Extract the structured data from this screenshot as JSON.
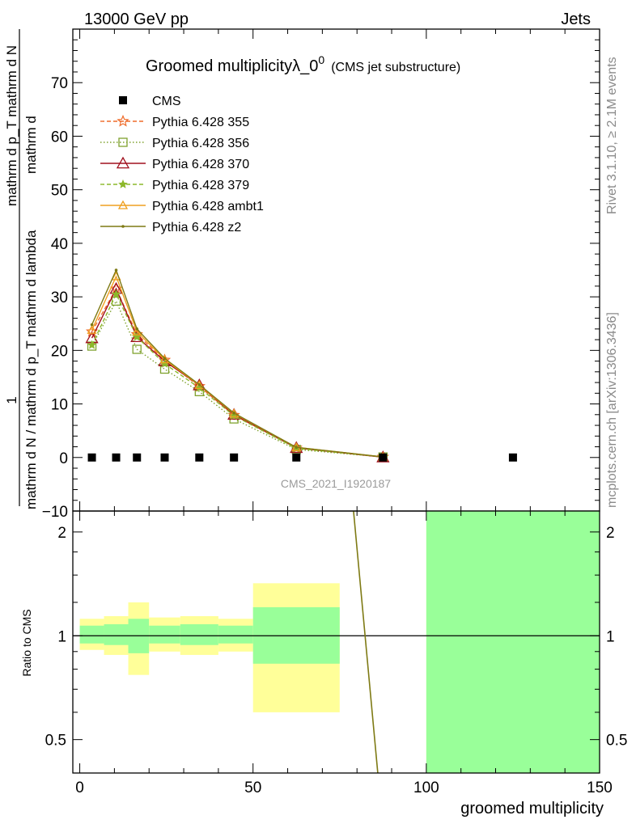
{
  "header": {
    "energy_label": "13000 GeV pp",
    "category_label": "Jets",
    "rivet_label": "Rivet 3.1.10, ≥ 2.1M events",
    "site_label": "mcplots.cern.ch [arXiv:1306.3436]",
    "analysis_id": "CMS_2021_I1920187"
  },
  "colors": {
    "cms": "#000000",
    "p355": "#ef6c2a",
    "p356": "#7fa22e",
    "p370": "#a0101e",
    "p379": "#8cb82a",
    "ambt1": "#efa020",
    "z2": "#7e7a14",
    "band_inner": "#99ff99",
    "band_outer": "#ffff99"
  },
  "chart_data": [
    {
      "type": "line",
      "title": "Groomed multiplicityλ_0",
      "title_superscript": "0",
      "subtitle": "(CMS jet substructure)",
      "ylabel_line1": "mathrm d N / mathrm d p_T mathrm d lambda",
      "ylabel_line2": "mathrm d p_T mathrm d N",
      "ylabel_small": "T",
      "ylabel_numerator": "1",
      "ylabel_fraction_top": "mathrm d",
      "ylabel_fraction_bottom": "mathrm d N / mathrm d p",
      "xlim": [
        -2,
        150
      ],
      "ylim": [
        -10,
        80
      ],
      "yticks": [
        -10,
        0,
        10,
        20,
        30,
        40,
        50,
        60,
        70
      ],
      "legend_position": "top-left",
      "cms": {
        "name": "CMS",
        "x": [
          3.5,
          10.5,
          16.5,
          24.5,
          34.5,
          44.5,
          62.5,
          87.5,
          125
        ],
        "y": [
          0,
          0,
          0,
          0,
          0,
          0,
          0,
          0,
          0
        ]
      },
      "x": [
        3.5,
        10.5,
        16.5,
        24.5,
        34.5,
        44.5,
        62.5,
        87.5
      ],
      "series": [
        {
          "name": "Pythia 6.428 355",
          "key": "p355",
          "marker": "star",
          "dash": "5,3",
          "values": [
            23.5,
            31.5,
            23.0,
            18.2,
            13.3,
            7.9,
            1.8,
            0.1
          ]
        },
        {
          "name": "Pythia 6.428 356",
          "key": "p356",
          "marker": "square",
          "dash": "1.5,2.5",
          "values": [
            20.8,
            29.2,
            20.2,
            16.5,
            12.3,
            7.2,
            1.5,
            0.1
          ]
        },
        {
          "name": "Pythia 6.428 370",
          "key": "p370",
          "marker": "triangle",
          "dash": "",
          "values": [
            22.3,
            31.5,
            22.5,
            18.0,
            13.5,
            8.0,
            1.8,
            0.05
          ]
        },
        {
          "name": "Pythia 6.428 379",
          "key": "p379",
          "marker": "star-small",
          "dash": "5,3",
          "values": [
            21.0,
            30.5,
            22.5,
            17.5,
            13.0,
            7.8,
            1.7,
            0.1
          ]
        },
        {
          "name": "Pythia 6.428 ambt1",
          "key": "ambt1",
          "marker": "triangle-small",
          "dash": "",
          "values": [
            23.8,
            33.8,
            23.5,
            18.3,
            13.5,
            8.2,
            1.9,
            0.1
          ]
        },
        {
          "name": "Pythia 6.428 z2",
          "key": "z2",
          "marker": "dot",
          "dash": "",
          "values": [
            24.8,
            35.0,
            24.0,
            18.5,
            13.6,
            8.3,
            1.9,
            0.1
          ]
        }
      ]
    },
    {
      "type": "area",
      "ylabel": "Ratio to CMS",
      "xlabel": "groomed multiplicity",
      "xlim": [
        -2,
        150
      ],
      "ylim": [
        0.4,
        2.3
      ],
      "xticks": [
        0,
        50,
        100,
        150
      ],
      "yticks": [
        0.5,
        1,
        2
      ],
      "reference_line": 1,
      "bands": [
        {
          "x0": 0,
          "x1": 7,
          "inner": [
            0.95,
            1.07
          ],
          "outer": [
            0.91,
            1.12
          ]
        },
        {
          "x0": 7,
          "x1": 14,
          "inner": [
            0.94,
            1.08
          ],
          "outer": [
            0.88,
            1.14
          ]
        },
        {
          "x0": 14,
          "x1": 20,
          "inner": [
            0.89,
            1.12
          ],
          "outer": [
            0.77,
            1.25
          ]
        },
        {
          "x0": 20,
          "x1": 29,
          "inner": [
            0.95,
            1.07
          ],
          "outer": [
            0.9,
            1.13
          ]
        },
        {
          "x0": 29,
          "x1": 40,
          "inner": [
            0.94,
            1.08
          ],
          "outer": [
            0.88,
            1.14
          ]
        },
        {
          "x0": 40,
          "x1": 50,
          "inner": [
            0.95,
            1.07
          ],
          "outer": [
            0.9,
            1.12
          ]
        },
        {
          "x0": 50,
          "x1": 75,
          "inner": [
            0.83,
            1.21
          ],
          "outer": [
            0.6,
            1.42
          ]
        },
        {
          "x0": 100,
          "x1": 150,
          "inner": [
            0.4,
            2.3
          ],
          "outer": [
            0.4,
            2.3
          ]
        }
      ],
      "ratio_line": {
        "x": [
          79,
          86
        ],
        "y": [
          2.3,
          0.4
        ]
      }
    }
  ]
}
